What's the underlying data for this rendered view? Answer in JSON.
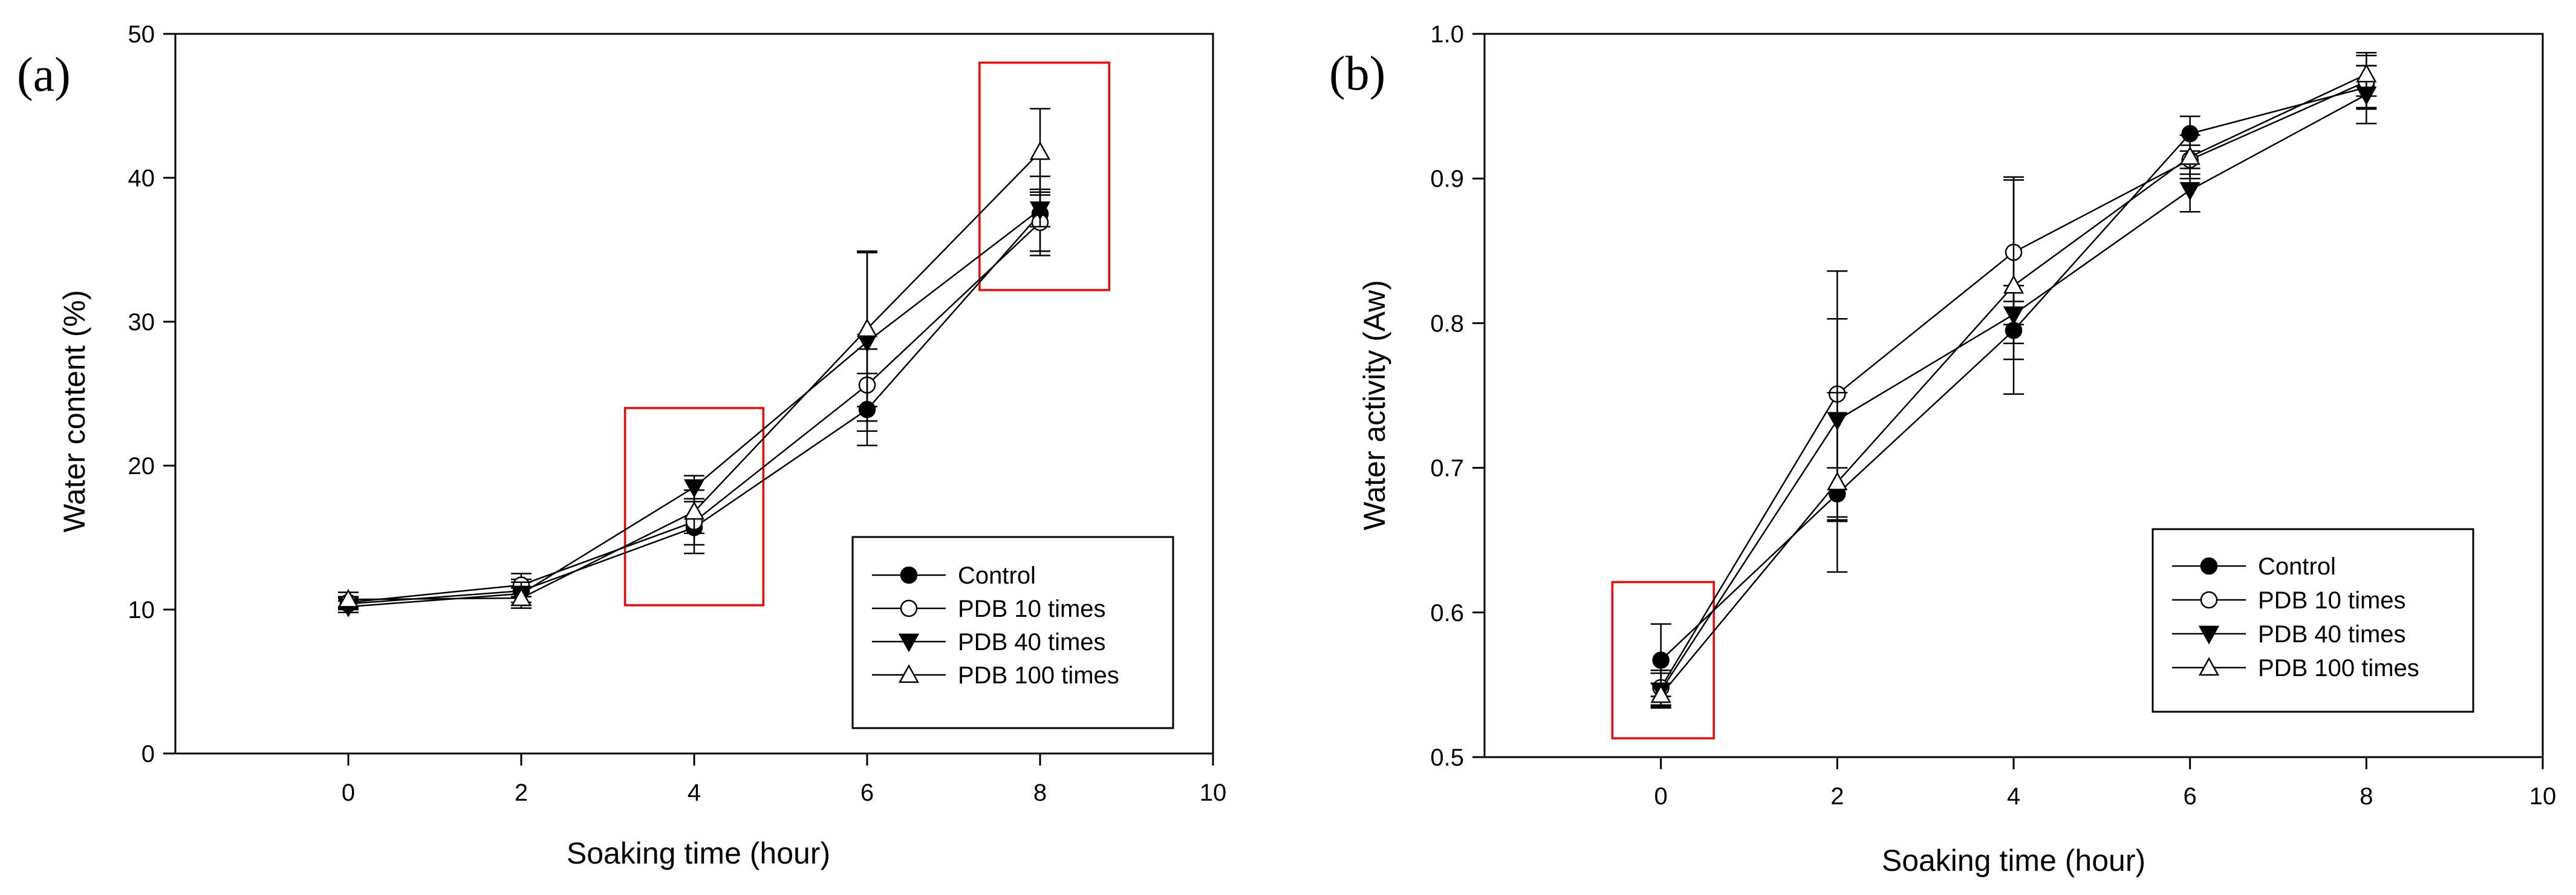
{
  "chart_data": [
    {
      "type": "line",
      "panel_label": "(a)",
      "title": "",
      "xlabel": "Soaking time (hour)",
      "ylabel": "Water content (%)",
      "xlim": [
        -2,
        10
      ],
      "ylim": [
        0,
        50
      ],
      "x_ticks": [
        0,
        2,
        4,
        6,
        8,
        10
      ],
      "y_ticks": [
        0,
        10,
        20,
        30,
        40,
        50
      ],
      "y_tick_decimals": 0,
      "grid": false,
      "legend_position": "bottom-right",
      "x": [
        0,
        2,
        4,
        6,
        8
      ],
      "series": [
        {
          "name": "Control",
          "marker": "filled-circle",
          "values": [
            10.4,
            11.3,
            15.7,
            23.9,
            37.5
          ],
          "errors": [
            0.4,
            0.8,
            1.8,
            2.5,
            2.6
          ]
        },
        {
          "name": "PDB 10 times",
          "marker": "open-circle",
          "values": [
            10.5,
            11.7,
            16.1,
            25.6,
            36.9
          ],
          "errors": [
            0.4,
            0.8,
            1.6,
            2.5,
            2.3
          ]
        },
        {
          "name": "PDB 40 times",
          "marker": "filled-triangle-down",
          "values": [
            10.2,
            11.1,
            18.5,
            28.6,
            37.8
          ],
          "errors": [
            0.4,
            0.8,
            0.8,
            6.2,
            1.2
          ]
        },
        {
          "name": "PDB 100 times",
          "marker": "open-triangle-up",
          "values": [
            10.7,
            10.8,
            16.8,
            29.5,
            41.8
          ],
          "errors": [
            0.5,
            0.7,
            1.5,
            5.4,
            3.0
          ]
        }
      ],
      "highlight_boxes": [
        {
          "x_range": [
            3.2,
            4.8
          ],
          "y_range": [
            10.3,
            24
          ]
        },
        {
          "x_range": [
            7.3,
            8.8
          ],
          "y_range": [
            32.2,
            48
          ]
        }
      ],
      "highlight_color": "#ff0000"
    },
    {
      "type": "line",
      "panel_label": "(b)",
      "title": "",
      "xlabel": "Soaking time (hour)",
      "ylabel": "Water activity (Aw)",
      "xlim": [
        -2,
        10
      ],
      "ylim": [
        0.5,
        1.0
      ],
      "x_ticks": [
        0,
        2,
        4,
        6,
        8,
        10
      ],
      "y_ticks": [
        0.5,
        0.6,
        0.7,
        0.8,
        0.9,
        1.0
      ],
      "y_tick_decimals": 1,
      "grid": false,
      "legend_position": "bottom-right",
      "x": [
        0,
        2,
        4,
        6,
        8
      ],
      "series": [
        {
          "name": "Control",
          "marker": "filled-circle",
          "values": [
            0.567,
            0.682,
            0.795,
            0.931,
            0.963
          ],
          "errors": [
            0.025,
            0.018,
            0.02,
            0.012,
            0.015
          ]
        },
        {
          "name": "PDB 10 times",
          "marker": "open-circle",
          "values": [
            0.548,
            0.751,
            0.849,
            0.913,
            0.967
          ],
          "errors": [
            0.012,
            0.085,
            0.05,
            0.01,
            0.018
          ]
        },
        {
          "name": "PDB 40 times",
          "marker": "filled-triangle-down",
          "values": [
            0.546,
            0.733,
            0.806,
            0.892,
            0.958
          ],
          "errors": [
            0.012,
            0.07,
            0.02,
            0.015,
            0.02
          ]
        },
        {
          "name": "PDB 100 times",
          "marker": "open-triangle-up",
          "values": [
            0.543,
            0.69,
            0.826,
            0.915,
            0.972
          ],
          "errors": [
            0.008,
            0.062,
            0.075,
            0.015,
            0.015
          ]
        }
      ],
      "highlight_boxes": [
        {
          "x_range": [
            -0.55,
            0.6
          ],
          "y_range": [
            0.513,
            0.621
          ]
        }
      ],
      "highlight_color": "#ff0000"
    }
  ]
}
